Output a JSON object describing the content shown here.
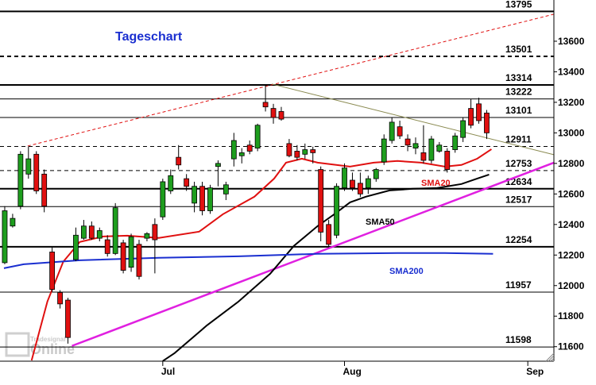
{
  "chart_data": {
    "type": "candlestick",
    "title": "Tageschart",
    "watermark": [
      "Tradesignal",
      "Online"
    ],
    "xlim": [
      -0.6,
      69.5
    ],
    "xticks": [
      {
        "value": 20,
        "label": "Jul"
      },
      {
        "value": 43,
        "label": "Aug"
      },
      {
        "value": 66.2,
        "label": "Sep"
      }
    ],
    "ylim": [
      11505,
      13870
    ],
    "yticks": [
      11600,
      11800,
      12000,
      12200,
      12400,
      12600,
      12800,
      13000,
      13200,
      13400,
      13600
    ],
    "up_color": "#1e9e1e",
    "down_color": "#e01010",
    "x": [
      0,
      1,
      2,
      3,
      4,
      5,
      6,
      7,
      8,
      9,
      10,
      11,
      12,
      13,
      14,
      15,
      16,
      17,
      18,
      19,
      20,
      21,
      22,
      23,
      24,
      25,
      26,
      27,
      28,
      29,
      30,
      31,
      32,
      33,
      34,
      35,
      36,
      37,
      38,
      39,
      40,
      41,
      42,
      43,
      44,
      45,
      46,
      47,
      48,
      49,
      50,
      51,
      52,
      53,
      54,
      55,
      56,
      57,
      58,
      59,
      60,
      61
    ],
    "open": [
      12150,
      12390,
      12520,
      12730,
      12860,
      12730,
      12220,
      11955,
      11905,
      12170,
      12310,
      12390,
      12310,
      12300,
      12210,
      12280,
      12120,
      12270,
      12310,
      12400,
      12450,
      12620,
      12840,
      12700,
      12540,
      12650,
      12490,
      12780,
      12600,
      12830,
      12850,
      12920,
      12900,
      13200,
      13160,
      13140,
      12930,
      12880,
      12860,
      12890,
      12760,
      12400,
      12330,
      12640,
      12690,
      12670,
      12640,
      12700,
      12810,
      12950,
      13040,
      12960,
      12900,
      12870,
      12820,
      12880,
      12880,
      12890,
      12970,
      13160,
      13190,
      13130
    ],
    "high": [
      12520,
      12470,
      12880,
      12910,
      12880,
      12760,
      12250,
      11970,
      11920,
      12380,
      12430,
      12420,
      12380,
      12330,
      12540,
      12300,
      12340,
      12300,
      12350,
      12440,
      12700,
      12760,
      12920,
      12730,
      12680,
      12680,
      12660,
      12820,
      12680,
      13000,
      12900,
      12950,
      13060,
      13314,
      13190,
      13170,
      12960,
      12920,
      12930,
      12910,
      12780,
      12430,
      12670,
      12800,
      12740,
      12740,
      12720,
      12770,
      12990,
      13100,
      13080,
      12990,
      12970,
      13050,
      12980,
      12940,
      12900,
      13000,
      13100,
      13220,
      13230,
      13150
    ],
    "low": [
      12140,
      12380,
      12500,
      12700,
      12600,
      12480,
      11960,
      11850,
      11620,
      12160,
      12300,
      12300,
      12290,
      12190,
      12200,
      12080,
      12090,
      12040,
      12290,
      12080,
      12430,
      12600,
      12760,
      12620,
      12480,
      12460,
      12470,
      12650,
      12560,
      12780,
      12800,
      12860,
      12880,
      13140,
      13060,
      13080,
      12840,
      12820,
      12830,
      12800,
      12290,
      12250,
      12310,
      12620,
      12620,
      12580,
      12600,
      12680,
      12790,
      12930,
      12960,
      12880,
      12860,
      12800,
      12800,
      12870,
      12740,
      12870,
      12940,
      13030,
      13060,
      12960
    ],
    "close": [
      12490,
      12440,
      12860,
      12830,
      12620,
      12520,
      11975,
      11880,
      11660,
      12330,
      12390,
      12310,
      12360,
      12210,
      12510,
      12100,
      12320,
      12060,
      12340,
      12300,
      12680,
      12720,
      12790,
      12650,
      12650,
      12490,
      12640,
      12800,
      12660,
      12950,
      12870,
      12880,
      13050,
      13170,
      13100,
      13090,
      12850,
      12840,
      12890,
      12870,
      12350,
      12270,
      12650,
      12770,
      12640,
      12600,
      12700,
      12760,
      12960,
      13070,
      12980,
      12920,
      12930,
      12820,
      12960,
      12920,
      12760,
      12980,
      13080,
      13050,
      13080,
      13000
    ],
    "levels": [
      {
        "value": 13795,
        "style": "solid-thick"
      },
      {
        "value": 13501,
        "style": "dashed-thick"
      },
      {
        "value": 13314,
        "style": "solid-thick"
      },
      {
        "value": 13222,
        "style": "solid"
      },
      {
        "value": 13101,
        "style": "solid"
      },
      {
        "value": 12911,
        "style": "dashed"
      },
      {
        "value": 12753,
        "style": "dashed"
      },
      {
        "value": 12634,
        "style": "solid-thick"
      },
      {
        "value": 12517,
        "style": "solid"
      },
      {
        "value": 12254,
        "style": "solid-thick"
      },
      {
        "value": 11957,
        "style": "solid"
      },
      {
        "value": 11598,
        "style": "solid"
      }
    ],
    "series": [
      {
        "name": "SMA20",
        "color": "#e01010",
        "x": [
          3.4,
          5.4,
          7.4,
          9.5,
          12.5,
          15.5,
          19.5,
          24.6,
          27.6,
          31.6,
          34.1,
          35.6,
          37.6,
          39.6,
          43.7,
          46.7,
          49.7,
          52.7,
          55.7,
          57.8,
          59.8,
          61.6
        ],
        "values": [
          11510,
          11896,
          12156,
          12286,
          12322,
          12327,
          12312,
          12353,
          12467,
          12582,
          12701,
          12805,
          12831,
          12805,
          12779,
          12805,
          12816,
          12805,
          12779,
          12790,
          12831,
          12893
        ]
      },
      {
        "name": "SMA50",
        "color": "#000000",
        "x": [
          20,
          21.5,
          25.6,
          29.6,
          33.6,
          36.6,
          39.6,
          41.7,
          43.7,
          45.7,
          48.7,
          51.7,
          54.7,
          57.8,
          59.8,
          61.3
        ],
        "values": [
          11506,
          11558,
          11740,
          11896,
          12078,
          12260,
          12390,
          12467,
          12545,
          12582,
          12623,
          12634,
          12639,
          12665,
          12701,
          12727
        ]
      },
      {
        "name": "SMA200",
        "color": "#1a2fd0",
        "x": [
          -0.1,
          2.4,
          9.5,
          19.5,
          29.6,
          39.6,
          49.7,
          55.7,
          61.8
        ],
        "values": [
          12114,
          12140,
          12166,
          12182,
          12192,
          12208,
          12213,
          12213,
          12208
        ]
      }
    ],
    "trendlines": [
      {
        "color": "#e020e0",
        "style": "solid",
        "x": [
          8.5,
          69.5
        ],
        "values": [
          11605,
          12805
        ]
      },
      {
        "color": "#e01010",
        "style": "dashed",
        "x": [
          2.9,
          69.5
        ],
        "values": [
          12914,
          13777
        ]
      },
      {
        "color": "#8a8a50",
        "style": "solid",
        "x": [
          33.8,
          69.5
        ],
        "values": [
          13320,
          12857
        ]
      }
    ]
  }
}
